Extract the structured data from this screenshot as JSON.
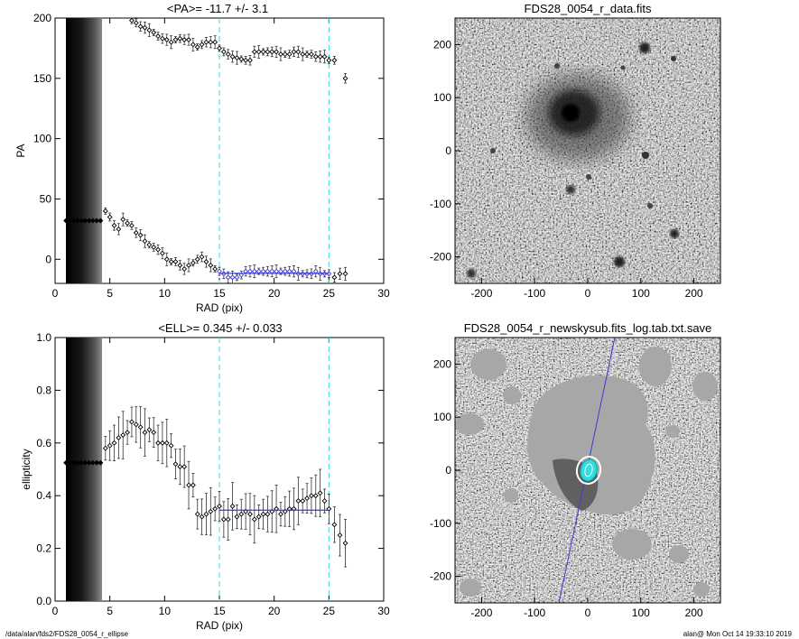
{
  "footer": {
    "left_path": "/data/alan/fds2/FDS28_0054_r_ellipse",
    "right_stamp": "alan@  Mon Oct 14 19:33:10 2019"
  },
  "colors": {
    "guide_cyan": "#33dddd",
    "fit_blue": "#3b3bd6",
    "points": "#000000"
  },
  "chart_data": [
    {
      "type": "scatter",
      "title": "<PA>= -11.7 +/-   3.1",
      "xlabel": "RAD (pix)",
      "ylabel": "PA",
      "xlim": [
        0,
        30
      ],
      "ylim": [
        -20,
        200
      ],
      "xticks": [
        0,
        5,
        10,
        15,
        20,
        25,
        30
      ],
      "yticks": [
        0,
        50,
        100,
        150,
        200
      ],
      "vlines": [
        15,
        25
      ],
      "fit": {
        "x": [
          15,
          25
        ],
        "y": -11.7
      },
      "series": [
        {
          "x": [
            4.6,
            5.0,
            5.4,
            5.8,
            6.2,
            6.6,
            7.0,
            7.4,
            7.8,
            8.2,
            8.6,
            9.0,
            9.4,
            9.8,
            10.2,
            10.6,
            11.0,
            11.4,
            11.8,
            12.2,
            12.6,
            13.0,
            13.4,
            13.8,
            14.2,
            14.6,
            15.0,
            15.4,
            15.8,
            16.2,
            16.6,
            17.0,
            17.4,
            17.8,
            18.2,
            18.6,
            19.0,
            19.4,
            19.8,
            20.2,
            20.6,
            21.0,
            21.4,
            21.8,
            22.2,
            22.6,
            23.0,
            23.4,
            23.8,
            24.2,
            24.6,
            25.0,
            25.5,
            26.0,
            26.5
          ],
          "y": [
            40,
            35,
            28,
            25,
            33,
            30,
            28,
            22,
            20,
            15,
            12,
            10,
            8,
            5,
            0,
            -2,
            -2,
            -5,
            -8,
            -5,
            -3,
            0,
            2,
            -2,
            -5,
            -8,
            -10,
            -12,
            -15,
            -15,
            -15,
            -13,
            -10,
            -10,
            -10,
            -10,
            -10,
            -10,
            -10,
            -10,
            -10,
            -10,
            -10,
            -10,
            -12,
            -12,
            -12,
            -12,
            -10,
            -12,
            -12,
            -12,
            -15,
            -12,
            -12
          ]
        },
        {
          "x": [
            7.0,
            7.4,
            7.8,
            8.2,
            8.6,
            9.0,
            9.4,
            9.8,
            10.2,
            10.6,
            11.0,
            11.4,
            11.8,
            12.2,
            12.6,
            13.0,
            13.4,
            13.8,
            14.2,
            14.6,
            15.0,
            15.4,
            15.8,
            16.2,
            16.6,
            17.0,
            17.4,
            17.8,
            18.2,
            18.6,
            19.0,
            19.4,
            19.8,
            20.2,
            20.6,
            21.0,
            21.4,
            21.8,
            22.2,
            22.6,
            23.0,
            23.4,
            23.8,
            24.2,
            24.6,
            25.0,
            25.5,
            26.5
          ],
          "y": [
            198,
            196,
            193,
            192,
            190,
            188,
            185,
            183,
            182,
            180,
            182,
            183,
            182,
            182,
            178,
            176,
            178,
            180,
            180,
            180,
            175,
            172,
            170,
            168,
            167,
            166,
            165,
            165,
            172,
            172,
            172,
            172,
            172,
            172,
            170,
            170,
            170,
            172,
            172,
            170,
            170,
            170,
            168,
            168,
            168,
            165,
            165,
            150
          ]
        }
      ]
    },
    {
      "type": "image",
      "title": "FDS28_0054_r_data.fits",
      "xlim": [
        -250,
        250
      ],
      "ylim": [
        -250,
        250
      ],
      "xticks": [
        -200,
        -100,
        0,
        100,
        200
      ],
      "yticks": [
        -200,
        -100,
        0,
        100,
        200
      ]
    },
    {
      "type": "scatter",
      "title": "<ELL>= 0.345 +/-  0.033",
      "xlabel": "RAD (pix)",
      "ylabel": "ellipticity",
      "xlim": [
        0,
        30
      ],
      "ylim": [
        0,
        1
      ],
      "xticks": [
        0,
        5,
        10,
        15,
        20,
        25,
        30
      ],
      "yticks": [
        0.0,
        0.2,
        0.4,
        0.6,
        0.8,
        1.0
      ],
      "vlines": [
        15,
        25
      ],
      "fit": {
        "x": [
          15,
          25
        ],
        "y": 0.345
      },
      "series": [
        {
          "x": [
            4.6,
            5.0,
            5.4,
            5.8,
            6.2,
            6.6,
            7.0,
            7.4,
            7.8,
            8.2,
            8.6,
            9.0,
            9.4,
            9.8,
            10.2,
            10.6,
            11.0,
            11.4,
            11.8,
            12.2,
            12.6,
            13.0,
            13.4,
            13.8,
            14.2,
            14.6,
            15.0,
            15.4,
            15.8,
            16.2,
            16.6,
            17.0,
            17.4,
            17.8,
            18.2,
            18.6,
            19.0,
            19.4,
            19.8,
            20.2,
            20.6,
            21.0,
            21.4,
            21.8,
            22.2,
            22.6,
            23.0,
            23.4,
            23.8,
            24.2,
            24.6,
            25.0,
            25.5,
            26.0,
            26.5
          ],
          "y": [
            0.58,
            0.59,
            0.6,
            0.62,
            0.63,
            0.64,
            0.68,
            0.67,
            0.66,
            0.64,
            0.65,
            0.64,
            0.6,
            0.6,
            0.6,
            0.59,
            0.52,
            0.51,
            0.51,
            0.44,
            0.44,
            0.33,
            0.32,
            0.33,
            0.34,
            0.35,
            0.36,
            0.31,
            0.31,
            0.36,
            0.32,
            0.33,
            0.34,
            0.33,
            0.31,
            0.32,
            0.33,
            0.33,
            0.34,
            0.35,
            0.33,
            0.34,
            0.35,
            0.35,
            0.38,
            0.38,
            0.39,
            0.4,
            0.4,
            0.41,
            0.38,
            0.35,
            0.29,
            0.25,
            0.22
          ]
        }
      ]
    },
    {
      "type": "image",
      "title": "FDS28_0054_r_newskysub.fits_log.tab.txt.save",
      "xlim": [
        -250,
        250
      ],
      "ylim": [
        -250,
        250
      ],
      "xticks": [
        -200,
        -100,
        0,
        100,
        200
      ],
      "yticks": [
        -200,
        -100,
        0,
        100,
        200
      ]
    }
  ]
}
